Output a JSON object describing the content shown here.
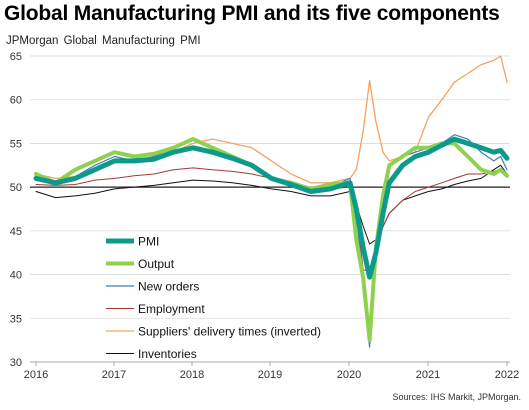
{
  "title": "Global Manufacturing PMI and its five components",
  "subtitle": "JPMorgan Global Manufacturing PMI",
  "source": "Sources: IHS Markit, JPMorgan.",
  "chart_data": {
    "type": "line",
    "ylim": [
      30,
      65
    ],
    "yticks": [
      30,
      35,
      40,
      45,
      50,
      55,
      60,
      65
    ],
    "xlim": [
      2016,
      2022
    ],
    "xticks": [
      "2016",
      "2017",
      "2018",
      "2019",
      "2020",
      "2021",
      "2022"
    ],
    "reference_line": 50,
    "grid": true,
    "legend_position": "lower-left",
    "series": [
      {
        "name": "Suppliers' delivery times (inverted)",
        "color": "#f4a261",
        "width": 1.3,
        "points": [
          [
            2016.0,
            51.5
          ],
          [
            2016.25,
            51.0
          ],
          [
            2016.5,
            51.2
          ],
          [
            2016.75,
            52.0
          ],
          [
            2017.0,
            53.0
          ],
          [
            2017.25,
            53.0
          ],
          [
            2017.5,
            53.2
          ],
          [
            2017.75,
            54.0
          ],
          [
            2018.0,
            55.0
          ],
          [
            2018.25,
            55.5
          ],
          [
            2018.5,
            55.0
          ],
          [
            2018.75,
            54.5
          ],
          [
            2019.0,
            53.0
          ],
          [
            2019.25,
            51.5
          ],
          [
            2019.5,
            50.5
          ],
          [
            2019.75,
            50.5
          ],
          [
            2020.0,
            51.0
          ],
          [
            2020.08,
            52.0
          ],
          [
            2020.17,
            56.5
          ],
          [
            2020.25,
            62.2
          ],
          [
            2020.33,
            57.5
          ],
          [
            2020.42,
            54.0
          ],
          [
            2020.5,
            53.0
          ],
          [
            2020.67,
            53.5
          ],
          [
            2020.83,
            54.0
          ],
          [
            2021.0,
            58.0
          ],
          [
            2021.17,
            60.0
          ],
          [
            2021.33,
            62.0
          ],
          [
            2021.5,
            63.0
          ],
          [
            2021.67,
            64.0
          ],
          [
            2021.83,
            64.5
          ],
          [
            2021.92,
            65.0
          ],
          [
            2022.0,
            62.0
          ]
        ]
      },
      {
        "name": "Inventories",
        "color": "#111111",
        "width": 1.0,
        "points": [
          [
            2016.0,
            49.5
          ],
          [
            2016.25,
            48.8
          ],
          [
            2016.5,
            49.0
          ],
          [
            2016.75,
            49.3
          ],
          [
            2017.0,
            49.8
          ],
          [
            2017.25,
            50.0
          ],
          [
            2017.5,
            50.2
          ],
          [
            2017.75,
            50.5
          ],
          [
            2018.0,
            50.8
          ],
          [
            2018.25,
            50.7
          ],
          [
            2018.5,
            50.5
          ],
          [
            2018.75,
            50.2
          ],
          [
            2019.0,
            49.8
          ],
          [
            2019.25,
            49.5
          ],
          [
            2019.5,
            49.0
          ],
          [
            2019.75,
            49.0
          ],
          [
            2020.0,
            49.5
          ],
          [
            2020.08,
            48.0
          ],
          [
            2020.17,
            45.5
          ],
          [
            2020.25,
            43.5
          ],
          [
            2020.33,
            44.0
          ],
          [
            2020.42,
            45.5
          ],
          [
            2020.5,
            47.0
          ],
          [
            2020.67,
            48.5
          ],
          [
            2020.83,
            49.0
          ],
          [
            2021.0,
            49.5
          ],
          [
            2021.17,
            49.8
          ],
          [
            2021.33,
            50.3
          ],
          [
            2021.5,
            50.7
          ],
          [
            2021.67,
            51.0
          ],
          [
            2021.83,
            52.0
          ],
          [
            2021.92,
            52.5
          ],
          [
            2022.0,
            51.5
          ]
        ]
      },
      {
        "name": "Employment",
        "color": "#a33a3a",
        "width": 1.0,
        "points": [
          [
            2016.0,
            50.3
          ],
          [
            2016.25,
            50.2
          ],
          [
            2016.5,
            50.3
          ],
          [
            2016.75,
            50.8
          ],
          [
            2017.0,
            51.0
          ],
          [
            2017.25,
            51.3
          ],
          [
            2017.5,
            51.5
          ],
          [
            2017.75,
            52.0
          ],
          [
            2018.0,
            52.2
          ],
          [
            2018.25,
            52.0
          ],
          [
            2018.5,
            51.8
          ],
          [
            2018.75,
            51.5
          ],
          [
            2019.0,
            51.0
          ],
          [
            2019.25,
            50.5
          ],
          [
            2019.5,
            50.0
          ],
          [
            2019.75,
            49.8
          ],
          [
            2020.0,
            50.0
          ],
          [
            2020.08,
            47.0
          ],
          [
            2020.17,
            40.5
          ],
          [
            2020.25,
            40.5
          ],
          [
            2020.33,
            43.0
          ],
          [
            2020.42,
            45.5
          ],
          [
            2020.5,
            47.0
          ],
          [
            2020.67,
            48.5
          ],
          [
            2020.83,
            49.5
          ],
          [
            2021.0,
            50.0
          ],
          [
            2021.17,
            50.5
          ],
          [
            2021.33,
            51.0
          ],
          [
            2021.5,
            51.5
          ],
          [
            2021.67,
            51.5
          ],
          [
            2021.83,
            51.8
          ],
          [
            2021.92,
            52.0
          ],
          [
            2022.0,
            51.3
          ]
        ]
      },
      {
        "name": "New orders",
        "color": "#4a7ab8",
        "width": 1.2,
        "points": [
          [
            2016.0,
            51.0
          ],
          [
            2016.25,
            50.5
          ],
          [
            2016.5,
            51.2
          ],
          [
            2016.75,
            52.5
          ],
          [
            2017.0,
            53.5
          ],
          [
            2017.25,
            53.0
          ],
          [
            2017.5,
            53.5
          ],
          [
            2017.75,
            54.5
          ],
          [
            2018.0,
            55.5
          ],
          [
            2018.25,
            54.5
          ],
          [
            2018.5,
            53.5
          ],
          [
            2018.75,
            52.5
          ],
          [
            2019.0,
            51.0
          ],
          [
            2019.25,
            50.5
          ],
          [
            2019.5,
            49.5
          ],
          [
            2019.75,
            50.0
          ],
          [
            2020.0,
            51.0
          ],
          [
            2020.08,
            47.5
          ],
          [
            2020.17,
            38.0
          ],
          [
            2020.25,
            31.7
          ],
          [
            2020.33,
            42.5
          ],
          [
            2020.42,
            48.5
          ],
          [
            2020.5,
            52.5
          ],
          [
            2020.67,
            53.5
          ],
          [
            2020.83,
            54.0
          ],
          [
            2021.0,
            54.5
          ],
          [
            2021.17,
            55.0
          ],
          [
            2021.33,
            56.0
          ],
          [
            2021.5,
            55.5
          ],
          [
            2021.67,
            54.0
          ],
          [
            2021.83,
            53.0
          ],
          [
            2021.92,
            53.5
          ],
          [
            2022.0,
            52.0
          ]
        ]
      },
      {
        "name": "Output",
        "color": "#8fd14f",
        "width": 4.0,
        "points": [
          [
            2016.0,
            51.5
          ],
          [
            2016.25,
            50.5
          ],
          [
            2016.5,
            52.0
          ],
          [
            2016.75,
            53.0
          ],
          [
            2017.0,
            54.0
          ],
          [
            2017.25,
            53.5
          ],
          [
            2017.5,
            53.8
          ],
          [
            2017.75,
            54.5
          ],
          [
            2018.0,
            55.5
          ],
          [
            2018.25,
            54.5
          ],
          [
            2018.5,
            53.5
          ],
          [
            2018.75,
            52.5
          ],
          [
            2019.0,
            51.0
          ],
          [
            2019.25,
            50.5
          ],
          [
            2019.5,
            49.8
          ],
          [
            2019.75,
            50.3
          ],
          [
            2020.0,
            50.5
          ],
          [
            2020.08,
            44.0
          ],
          [
            2020.17,
            39.5
          ],
          [
            2020.25,
            32.5
          ],
          [
            2020.33,
            43.0
          ],
          [
            2020.42,
            49.0
          ],
          [
            2020.5,
            52.5
          ],
          [
            2020.67,
            53.5
          ],
          [
            2020.83,
            54.5
          ],
          [
            2021.0,
            54.5
          ],
          [
            2021.17,
            55.0
          ],
          [
            2021.33,
            55.0
          ],
          [
            2021.5,
            53.5
          ],
          [
            2021.67,
            52.0
          ],
          [
            2021.83,
            51.5
          ],
          [
            2021.92,
            52.0
          ],
          [
            2022.0,
            51.3
          ]
        ]
      },
      {
        "name": "PMI",
        "color": "#0e9a8a",
        "width": 5.0,
        "points": [
          [
            2016.0,
            51.0
          ],
          [
            2016.25,
            50.5
          ],
          [
            2016.5,
            51.0
          ],
          [
            2016.75,
            52.0
          ],
          [
            2017.0,
            53.0
          ],
          [
            2017.25,
            53.0
          ],
          [
            2017.5,
            53.2
          ],
          [
            2017.75,
            54.0
          ],
          [
            2018.0,
            54.5
          ],
          [
            2018.25,
            54.0
          ],
          [
            2018.5,
            53.3
          ],
          [
            2018.75,
            52.5
          ],
          [
            2019.0,
            51.0
          ],
          [
            2019.25,
            50.3
          ],
          [
            2019.5,
            49.5
          ],
          [
            2019.75,
            49.8
          ],
          [
            2020.0,
            50.5
          ],
          [
            2020.08,
            47.5
          ],
          [
            2020.17,
            43.0
          ],
          [
            2020.25,
            39.7
          ],
          [
            2020.33,
            42.5
          ],
          [
            2020.42,
            47.0
          ],
          [
            2020.5,
            50.5
          ],
          [
            2020.67,
            52.5
          ],
          [
            2020.83,
            53.5
          ],
          [
            2021.0,
            54.0
          ],
          [
            2021.17,
            54.8
          ],
          [
            2021.33,
            55.5
          ],
          [
            2021.5,
            55.0
          ],
          [
            2021.67,
            54.5
          ],
          [
            2021.83,
            54.0
          ],
          [
            2021.92,
            54.2
          ],
          [
            2022.0,
            53.3
          ]
        ]
      }
    ],
    "legend": [
      {
        "name": "PMI",
        "color": "#0e9a8a",
        "width": 5.0
      },
      {
        "name": "Output",
        "color": "#8fd14f",
        "width": 4.0
      },
      {
        "name": "New orders",
        "color": "#4a7ab8",
        "width": 1.2
      },
      {
        "name": "Employment",
        "color": "#a33a3a",
        "width": 1.0
      },
      {
        "name": "Suppliers' delivery times (inverted)",
        "color": "#f4a261",
        "width": 1.3
      },
      {
        "name": "Inventories",
        "color": "#111111",
        "width": 1.0
      }
    ]
  }
}
